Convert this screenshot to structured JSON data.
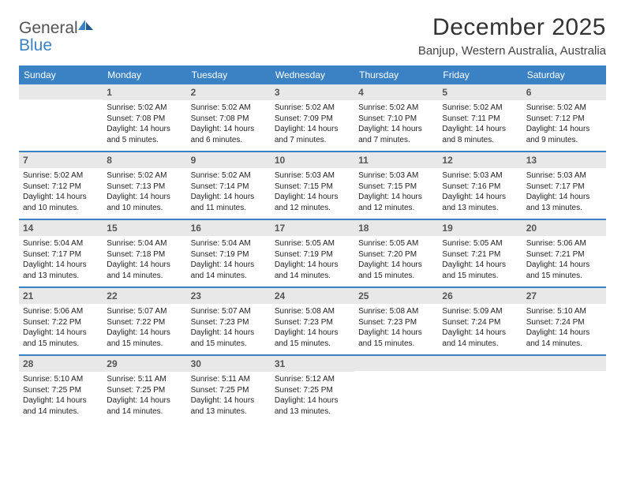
{
  "brand": {
    "word1": "General",
    "word2": "Blue"
  },
  "title": {
    "month": "December 2025",
    "location": "Banjup, Western Australia, Australia"
  },
  "colors": {
    "header_bg": "#3b82c4",
    "header_text": "#ffffff",
    "daynum_bg": "#e8e8e8",
    "daynum_text": "#555555",
    "body_text": "#222222",
    "title_text": "#333333",
    "rule": "#3b82c4"
  },
  "dayNames": [
    "Sunday",
    "Monday",
    "Tuesday",
    "Wednesday",
    "Thursday",
    "Friday",
    "Saturday"
  ],
  "weeks": [
    [
      {
        "empty": true
      },
      {
        "n": "1",
        "sr": "5:02 AM",
        "ss": "7:08 PM",
        "dl": "14 hours and 5 minutes."
      },
      {
        "n": "2",
        "sr": "5:02 AM",
        "ss": "7:08 PM",
        "dl": "14 hours and 6 minutes."
      },
      {
        "n": "3",
        "sr": "5:02 AM",
        "ss": "7:09 PM",
        "dl": "14 hours and 7 minutes."
      },
      {
        "n": "4",
        "sr": "5:02 AM",
        "ss": "7:10 PM",
        "dl": "14 hours and 7 minutes."
      },
      {
        "n": "5",
        "sr": "5:02 AM",
        "ss": "7:11 PM",
        "dl": "14 hours and 8 minutes."
      },
      {
        "n": "6",
        "sr": "5:02 AM",
        "ss": "7:12 PM",
        "dl": "14 hours and 9 minutes."
      }
    ],
    [
      {
        "n": "7",
        "sr": "5:02 AM",
        "ss": "7:12 PM",
        "dl": "14 hours and 10 minutes."
      },
      {
        "n": "8",
        "sr": "5:02 AM",
        "ss": "7:13 PM",
        "dl": "14 hours and 10 minutes."
      },
      {
        "n": "9",
        "sr": "5:02 AM",
        "ss": "7:14 PM",
        "dl": "14 hours and 11 minutes."
      },
      {
        "n": "10",
        "sr": "5:03 AM",
        "ss": "7:15 PM",
        "dl": "14 hours and 12 minutes."
      },
      {
        "n": "11",
        "sr": "5:03 AM",
        "ss": "7:15 PM",
        "dl": "14 hours and 12 minutes."
      },
      {
        "n": "12",
        "sr": "5:03 AM",
        "ss": "7:16 PM",
        "dl": "14 hours and 13 minutes."
      },
      {
        "n": "13",
        "sr": "5:03 AM",
        "ss": "7:17 PM",
        "dl": "14 hours and 13 minutes."
      }
    ],
    [
      {
        "n": "14",
        "sr": "5:04 AM",
        "ss": "7:17 PM",
        "dl": "14 hours and 13 minutes."
      },
      {
        "n": "15",
        "sr": "5:04 AM",
        "ss": "7:18 PM",
        "dl": "14 hours and 14 minutes."
      },
      {
        "n": "16",
        "sr": "5:04 AM",
        "ss": "7:19 PM",
        "dl": "14 hours and 14 minutes."
      },
      {
        "n": "17",
        "sr": "5:05 AM",
        "ss": "7:19 PM",
        "dl": "14 hours and 14 minutes."
      },
      {
        "n": "18",
        "sr": "5:05 AM",
        "ss": "7:20 PM",
        "dl": "14 hours and 15 minutes."
      },
      {
        "n": "19",
        "sr": "5:05 AM",
        "ss": "7:21 PM",
        "dl": "14 hours and 15 minutes."
      },
      {
        "n": "20",
        "sr": "5:06 AM",
        "ss": "7:21 PM",
        "dl": "14 hours and 15 minutes."
      }
    ],
    [
      {
        "n": "21",
        "sr": "5:06 AM",
        "ss": "7:22 PM",
        "dl": "14 hours and 15 minutes."
      },
      {
        "n": "22",
        "sr": "5:07 AM",
        "ss": "7:22 PM",
        "dl": "14 hours and 15 minutes."
      },
      {
        "n": "23",
        "sr": "5:07 AM",
        "ss": "7:23 PM",
        "dl": "14 hours and 15 minutes."
      },
      {
        "n": "24",
        "sr": "5:08 AM",
        "ss": "7:23 PM",
        "dl": "14 hours and 15 minutes."
      },
      {
        "n": "25",
        "sr": "5:08 AM",
        "ss": "7:23 PM",
        "dl": "14 hours and 15 minutes."
      },
      {
        "n": "26",
        "sr": "5:09 AM",
        "ss": "7:24 PM",
        "dl": "14 hours and 14 minutes."
      },
      {
        "n": "27",
        "sr": "5:10 AM",
        "ss": "7:24 PM",
        "dl": "14 hours and 14 minutes."
      }
    ],
    [
      {
        "n": "28",
        "sr": "5:10 AM",
        "ss": "7:25 PM",
        "dl": "14 hours and 14 minutes."
      },
      {
        "n": "29",
        "sr": "5:11 AM",
        "ss": "7:25 PM",
        "dl": "14 hours and 14 minutes."
      },
      {
        "n": "30",
        "sr": "5:11 AM",
        "ss": "7:25 PM",
        "dl": "14 hours and 13 minutes."
      },
      {
        "n": "31",
        "sr": "5:12 AM",
        "ss": "7:25 PM",
        "dl": "14 hours and 13 minutes."
      },
      {
        "empty": true
      },
      {
        "empty": true
      },
      {
        "empty": true
      }
    ]
  ],
  "labels": {
    "sunrise": "Sunrise:",
    "sunset": "Sunset:",
    "daylight": "Daylight:"
  }
}
